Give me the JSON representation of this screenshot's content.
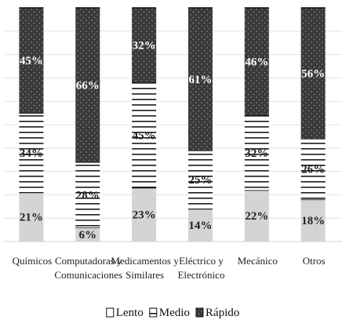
{
  "chart_data": {
    "type": "bar",
    "stacked": true,
    "percent_stacked": true,
    "categories": [
      [
        "Químicos"
      ],
      [
        "Computadoras y",
        "Comunicaciones"
      ],
      [
        "Medicamentos y",
        "Similares"
      ],
      [
        "Eléctrico y",
        "Electrónico"
      ],
      [
        "Mecánico"
      ],
      [
        "Otros"
      ]
    ],
    "series": [
      {
        "name": "Lento",
        "values": [
          21,
          6,
          23,
          14,
          22,
          18
        ],
        "labels": [
          "21%",
          "6%",
          "23%",
          "14%",
          "22%",
          "18%"
        ],
        "color": "#d4d4d4",
        "pattern": "solid"
      },
      {
        "name": "Medio",
        "values": [
          34,
          28,
          45,
          25,
          32,
          26
        ],
        "labels": [
          "34%",
          "28%",
          "45%",
          "25%",
          "32%",
          "26%"
        ],
        "color": "#ffffff",
        "pattern": "horizontal-lines"
      },
      {
        "name": "Rápido",
        "values": [
          45,
          66,
          32,
          61,
          46,
          56
        ],
        "labels": [
          "45%",
          "66%",
          "32%",
          "61%",
          "46%",
          "56%"
        ],
        "color": "#3a3a3a",
        "pattern": "dots"
      }
    ],
    "ylim": [
      0,
      100
    ],
    "grid": true,
    "legend_position": "bottom",
    "title": "",
    "xlabel": "",
    "ylabel": ""
  }
}
